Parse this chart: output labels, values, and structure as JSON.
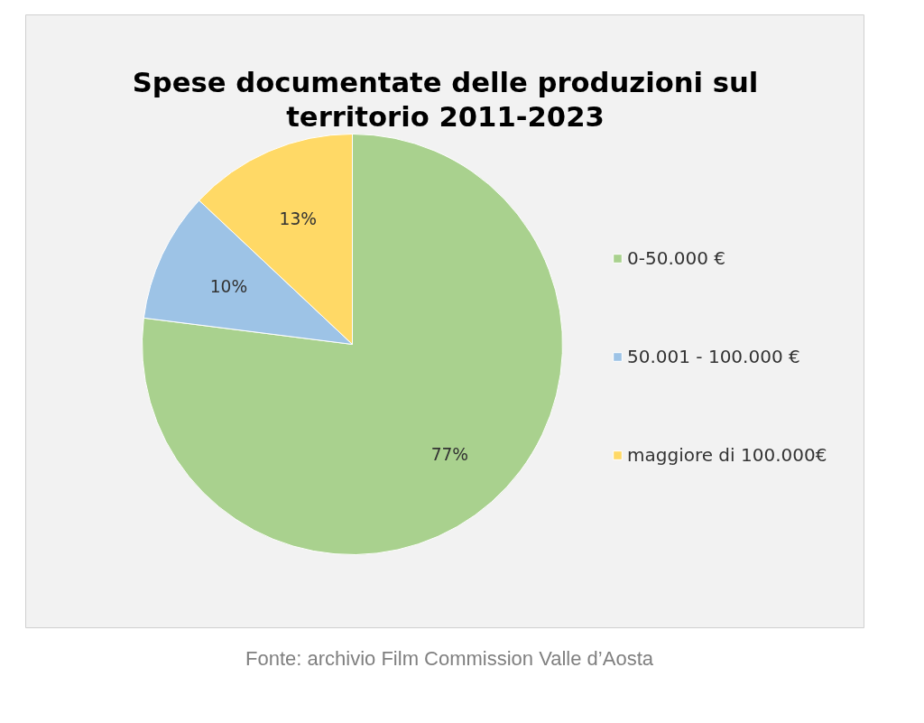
{
  "chart_data": {
    "type": "pie",
    "title": "Spese documentate delle produzioni sul\nterritorio 2011-2023",
    "categories": [
      "0-50.000 €",
      "50.001 - 100.000 €",
      "maggiore di 100.000€"
    ],
    "values": [
      77,
      10,
      13
    ],
    "colors": [
      "#a9d18e",
      "#9dc3e6",
      "#ffd966"
    ],
    "value_labels": [
      "77%",
      "10%",
      "13%"
    ],
    "legend": "right",
    "annotations": [
      "Fonte: archivio Film Commission Valle d’Aosta"
    ]
  }
}
